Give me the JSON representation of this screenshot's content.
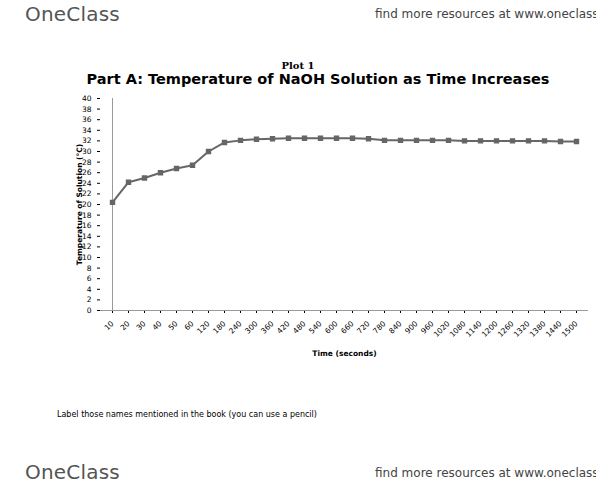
{
  "header": {
    "logo": "OneClass",
    "link": "find more resources at www.oneclass.com"
  },
  "caption": "Plot 1",
  "chart_data": {
    "type": "line",
    "title": "Part A: Temperature of NaOH Solution as Time Increases",
    "x_label": "Time (seconds)",
    "y_label": "Temperature of Solution (°C)",
    "categories": [
      "10",
      "20",
      "30",
      "40",
      "50",
      "60",
      "120",
      "180",
      "240",
      "300",
      "360",
      "420",
      "480",
      "540",
      "600",
      "660",
      "720",
      "780",
      "840",
      "900",
      "960",
      "1020",
      "1080",
      "1140",
      "1200",
      "1260",
      "1320",
      "1380",
      "1440",
      "1500"
    ],
    "values": [
      20.4,
      24.2,
      25.0,
      26.0,
      26.8,
      27.4,
      30.0,
      31.7,
      32.1,
      32.3,
      32.4,
      32.5,
      32.5,
      32.5,
      32.5,
      32.5,
      32.4,
      32.1,
      32.1,
      32.1,
      32.1,
      32.1,
      32.0,
      32.0,
      32.0,
      32.0,
      32.0,
      32.0,
      31.9,
      31.9
    ],
    "color": "#666666",
    "marker": "square",
    "line_style": "solid",
    "ylim": [
      0,
      40
    ],
    "yticks": [
      0,
      2,
      4,
      6,
      8,
      10,
      12,
      14,
      16,
      18,
      20,
      22,
      24,
      26,
      28,
      30,
      32,
      34,
      36,
      38,
      40
    ],
    "grid": false
  },
  "instruction": "Label those names mentioned in the book (you can use a pencil)",
  "footer": {
    "logo": "OneClass",
    "link": "find more resources at www.oneclass.com"
  }
}
